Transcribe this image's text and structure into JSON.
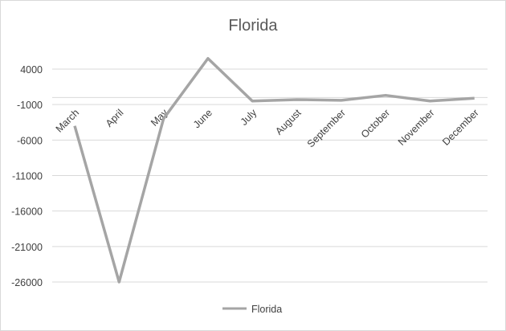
{
  "chart_data": {
    "type": "line",
    "title": "Florida",
    "xlabel": "",
    "ylabel": "",
    "categories": [
      "March",
      "April",
      "May",
      "June",
      "July",
      "August",
      "September",
      "October",
      "November",
      "December"
    ],
    "series": [
      {
        "name": "Florida",
        "color": "#a5a5a5",
        "values": [
          -4000,
          -26000,
          -3000,
          5500,
          -500,
          -300,
          -400,
          300,
          -500,
          -100
        ]
      }
    ],
    "yticks": [
      4000,
      -1000,
      -6000,
      -11000,
      -16000,
      -21000,
      -26000
    ],
    "ylim": [
      -26000,
      4000
    ],
    "grid": true,
    "legend_position": "bottom"
  }
}
